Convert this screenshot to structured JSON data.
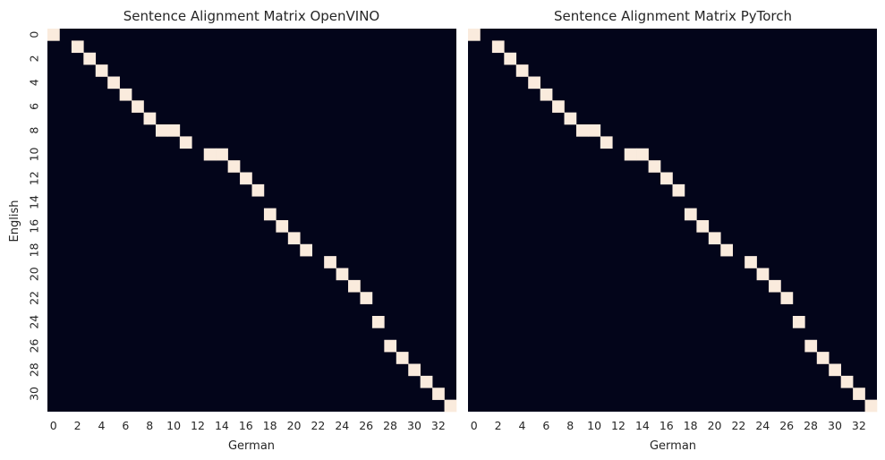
{
  "chart_data": [
    {
      "type": "heatmap",
      "title": "Sentence Alignment Matrix OpenVINO",
      "xlabel": "German",
      "ylabel": "English",
      "x_count": 34,
      "y_count": 32,
      "x_ticks": [
        0,
        2,
        4,
        6,
        8,
        10,
        12,
        14,
        16,
        18,
        20,
        22,
        24,
        26,
        28,
        30,
        32
      ],
      "y_ticks": [
        0,
        2,
        4,
        6,
        8,
        10,
        12,
        14,
        16,
        18,
        20,
        22,
        24,
        26,
        28,
        30
      ],
      "value_range": [
        0,
        1
      ],
      "colors": {
        "low": "#03051a",
        "high": "#faebdd"
      },
      "aligned_cells": [
        [
          0,
          0
        ],
        [
          1,
          2
        ],
        [
          2,
          3
        ],
        [
          3,
          4
        ],
        [
          4,
          5
        ],
        [
          5,
          6
        ],
        [
          6,
          7
        ],
        [
          7,
          8
        ],
        [
          8,
          9
        ],
        [
          8,
          10
        ],
        [
          9,
          11
        ],
        [
          10,
          13
        ],
        [
          10,
          14
        ],
        [
          11,
          15
        ],
        [
          12,
          16
        ],
        [
          13,
          17
        ],
        [
          15,
          18
        ],
        [
          16,
          19
        ],
        [
          17,
          20
        ],
        [
          18,
          21
        ],
        [
          19,
          23
        ],
        [
          20,
          24
        ],
        [
          21,
          25
        ],
        [
          22,
          26
        ],
        [
          24,
          27
        ],
        [
          26,
          28
        ],
        [
          27,
          29
        ],
        [
          28,
          30
        ],
        [
          29,
          31
        ],
        [
          30,
          32
        ],
        [
          31,
          33
        ]
      ]
    },
    {
      "type": "heatmap",
      "title": "Sentence Alignment Matrix PyTorch",
      "xlabel": "German",
      "ylabel": "",
      "x_count": 34,
      "y_count": 32,
      "x_ticks": [
        0,
        2,
        4,
        6,
        8,
        10,
        12,
        14,
        16,
        18,
        20,
        22,
        24,
        26,
        28,
        30,
        32
      ],
      "y_ticks": [],
      "value_range": [
        0,
        1
      ],
      "colors": {
        "low": "#03051a",
        "high": "#faebdd"
      },
      "aligned_cells": [
        [
          0,
          0
        ],
        [
          1,
          2
        ],
        [
          2,
          3
        ],
        [
          3,
          4
        ],
        [
          4,
          5
        ],
        [
          5,
          6
        ],
        [
          6,
          7
        ],
        [
          7,
          8
        ],
        [
          8,
          9
        ],
        [
          8,
          10
        ],
        [
          9,
          11
        ],
        [
          10,
          13
        ],
        [
          10,
          14
        ],
        [
          11,
          15
        ],
        [
          12,
          16
        ],
        [
          13,
          17
        ],
        [
          15,
          18
        ],
        [
          16,
          19
        ],
        [
          17,
          20
        ],
        [
          18,
          21
        ],
        [
          19,
          23
        ],
        [
          20,
          24
        ],
        [
          21,
          25
        ],
        [
          22,
          26
        ],
        [
          24,
          27
        ],
        [
          26,
          28
        ],
        [
          27,
          29
        ],
        [
          28,
          30
        ],
        [
          29,
          31
        ],
        [
          30,
          32
        ],
        [
          31,
          33
        ]
      ]
    }
  ]
}
